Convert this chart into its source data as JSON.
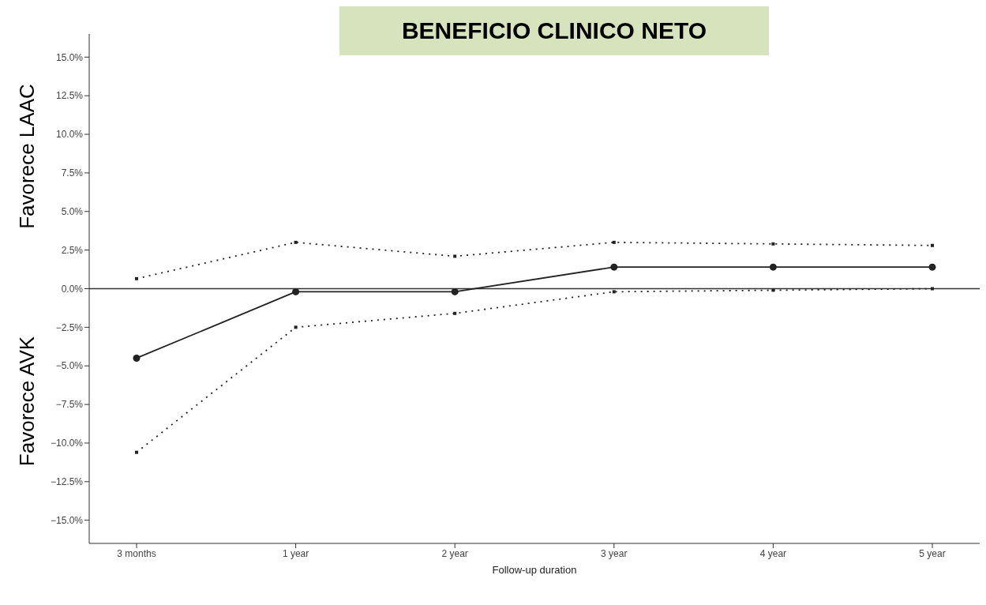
{
  "chart_data": {
    "type": "line",
    "title": "BENEFICIO CLINICO NETO",
    "xlabel": "Follow-up duration",
    "annotations": [
      "Favorece LAAC",
      "Favorece AVK"
    ],
    "categories": [
      "3 months",
      "1 year",
      "2 year",
      "3 year",
      "4 year",
      "5 year"
    ],
    "series": [
      {
        "color": "#222222",
        "values": [
          0.65,
          3.0,
          2.1,
          3.0,
          2.9,
          2.8
        ],
        "line_style": "dotted",
        "marker": "square"
      },
      {
        "color": "#222222",
        "values": [
          -4.5,
          -0.2,
          -0.2,
          1.4,
          1.4,
          1.4
        ],
        "line_style": "solid",
        "marker": "circle"
      },
      {
        "color": "#222222",
        "values": [
          -10.6,
          -2.5,
          -1.6,
          -0.2,
          -0.1,
          0.0
        ],
        "line_style": "dotted",
        "marker": "square"
      }
    ],
    "ylim": [
      -16.5,
      16.5
    ],
    "yticks": [
      {
        "value": 15,
        "label": "15.0%"
      },
      {
        "value": 12.5,
        "label": "12.5%"
      },
      {
        "value": 10,
        "label": "10.0%"
      },
      {
        "value": 7.5,
        "label": "7.5%"
      },
      {
        "value": 5,
        "label": "5.0%"
      },
      {
        "value": 2.5,
        "label": "2.5%"
      },
      {
        "value": 0,
        "label": "0.0%"
      },
      {
        "value": -2.5,
        "label": "−2.5%"
      },
      {
        "value": -5,
        "label": "−5.0%"
      },
      {
        "value": -7.5,
        "label": "−7.5%"
      },
      {
        "value": -10,
        "label": "−10.0%"
      },
      {
        "value": -12.5,
        "label": "−12.5%"
      },
      {
        "value": -15,
        "label": "−15.0%"
      }
    ],
    "ref_lines": [
      {
        "axis": "y",
        "value": 0,
        "color": "#333333"
      }
    ],
    "grid": false,
    "legend": false
  }
}
